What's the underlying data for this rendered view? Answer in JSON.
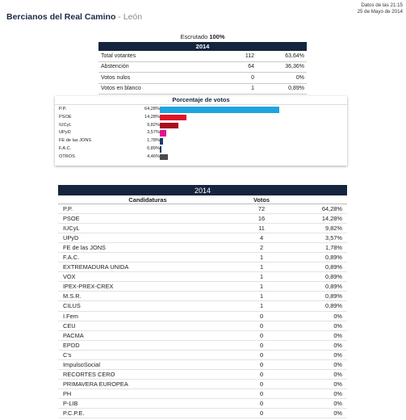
{
  "header": {
    "municipality": "Bercianos del Real Camino",
    "separator": " - ",
    "province": "León",
    "datetime_line1": "Datos de las 21:15",
    "datetime_line2": "25 de Mayo de 2014"
  },
  "escrutado": {
    "label": "Escrutado",
    "value": "100%"
  },
  "summary": {
    "year": "2014",
    "rows": [
      {
        "label": "Total votantes",
        "count": "112",
        "pct": "63,64%"
      },
      {
        "label": "Abstención",
        "count": "64",
        "pct": "36,36%"
      },
      {
        "label": "Votos nulos",
        "count": "0",
        "pct": "0%"
      },
      {
        "label": "Votos en blanco",
        "count": "1",
        "pct": "0,89%"
      }
    ]
  },
  "chart_data": {
    "type": "bar",
    "title": "Porcentaje de votos",
    "categories": [
      "P.P.",
      "PSOE",
      "IUCyL",
      "UPyD",
      "FE de las JONS",
      "F.A.C.",
      "OTROS"
    ],
    "values": [
      64.28,
      14.28,
      9.82,
      3.57,
      1.78,
      0.89,
      4.46
    ],
    "labels": [
      "64,28%",
      "14,28%",
      "9,82%",
      "3,57%",
      "1,78%",
      "0,89%",
      "4,46%"
    ],
    "colors": [
      "#1ea4e0",
      "#e0152a",
      "#a8101c",
      "#e3168f",
      "#1d3a6b",
      "#1d3a6b",
      "#4a4a4a"
    ],
    "xlim": [
      0,
      100
    ]
  },
  "results": {
    "year": "2014",
    "col_candidatura": "Candidaturas",
    "col_votos": "Votos",
    "rows": [
      {
        "name": "P.P.",
        "votes": "72",
        "pct": "64,28%"
      },
      {
        "name": "PSOE",
        "votes": "16",
        "pct": "14,28%"
      },
      {
        "name": "IUCyL",
        "votes": "11",
        "pct": "9,82%"
      },
      {
        "name": "UPyD",
        "votes": "4",
        "pct": "3,57%"
      },
      {
        "name": "FE de las JONS",
        "votes": "2",
        "pct": "1,78%"
      },
      {
        "name": "F.A.C.",
        "votes": "1",
        "pct": "0,89%"
      },
      {
        "name": "EXTREMADURA UNIDA",
        "votes": "1",
        "pct": "0,89%"
      },
      {
        "name": "VOX",
        "votes": "1",
        "pct": "0,89%"
      },
      {
        "name": "IPEX-PREX-CREX",
        "votes": "1",
        "pct": "0,89%"
      },
      {
        "name": "M.S.R.",
        "votes": "1",
        "pct": "0,89%"
      },
      {
        "name": "CILUS",
        "votes": "1",
        "pct": "0,89%"
      },
      {
        "name": "I.Fem",
        "votes": "0",
        "pct": "0%"
      },
      {
        "name": "CEU",
        "votes": "0",
        "pct": "0%"
      },
      {
        "name": "PACMA",
        "votes": "0",
        "pct": "0%"
      },
      {
        "name": "EPDD",
        "votes": "0",
        "pct": "0%"
      },
      {
        "name": "C's",
        "votes": "0",
        "pct": "0%"
      },
      {
        "name": "ImpulsoSocial",
        "votes": "0",
        "pct": "0%"
      },
      {
        "name": "RECORTES CERO",
        "votes": "0",
        "pct": "0%"
      },
      {
        "name": "PRIMAVERA EUROPEA",
        "votes": "0",
        "pct": "0%"
      },
      {
        "name": "PH",
        "votes": "0",
        "pct": "0%"
      },
      {
        "name": "P-LIB",
        "votes": "0",
        "pct": "0%"
      },
      {
        "name": "P.C.P.E.",
        "votes": "0",
        "pct": "0%"
      }
    ]
  }
}
